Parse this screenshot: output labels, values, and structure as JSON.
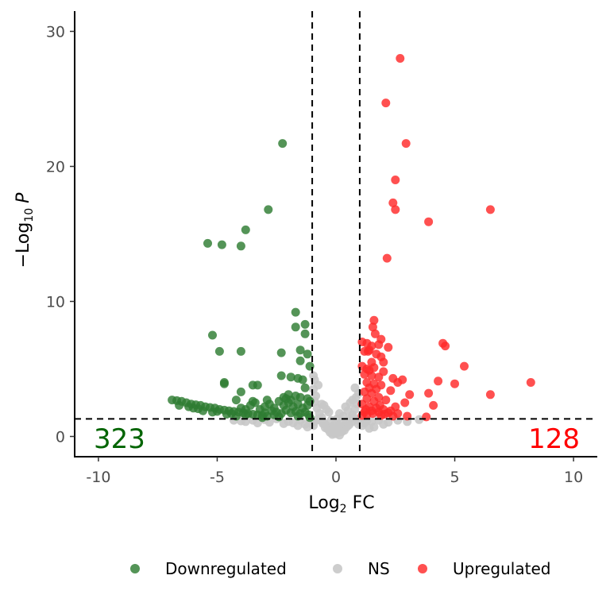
{
  "chart_data": {
    "type": "scatter",
    "title": "",
    "xlabel": {
      "base": "Log",
      "sub": "2",
      "rest": " FC"
    },
    "ylabel": {
      "prefix": "−Log",
      "sub": "10",
      "var": "P"
    },
    "xlim": [
      -11,
      11
    ],
    "ylim": [
      -1.5,
      31.5
    ],
    "x_ticks": [
      -10,
      -5,
      0,
      5,
      10
    ],
    "x_tick_labels": [
      "-10",
      "-5",
      "0",
      "5",
      "10"
    ],
    "y_ticks": [
      0,
      10,
      20,
      30
    ],
    "y_tick_labels": [
      "0",
      "10",
      "20",
      "30"
    ],
    "fc_cutoffs": [
      -1,
      1
    ],
    "p_cutoff": 1.3,
    "grid": false,
    "legend_position": "bottom",
    "counts": {
      "down": {
        "text": "323",
        "color": "#006400"
      },
      "up": {
        "text": "128",
        "color": "#ff0000"
      }
    },
    "series": [
      {
        "name": "Downregulated",
        "color": "#2e7d32",
        "points": [
          [
            -2.25,
            21.7
          ],
          [
            -2.85,
            16.8
          ],
          [
            -3.8,
            15.3
          ],
          [
            -5.4,
            14.3
          ],
          [
            -4.8,
            14.2
          ],
          [
            -4.0,
            14.1
          ],
          [
            -1.7,
            9.2
          ],
          [
            -1.3,
            8.3
          ],
          [
            -1.7,
            8.1
          ],
          [
            -1.3,
            7.6
          ],
          [
            -5.2,
            7.5
          ],
          [
            -4.9,
            6.3
          ],
          [
            -4.0,
            6.3
          ],
          [
            -2.3,
            6.2
          ],
          [
            -1.5,
            6.4
          ],
          [
            -1.2,
            6.1
          ],
          [
            -1.5,
            5.6
          ],
          [
            -1.1,
            5.2
          ],
          [
            -4.7,
            4.0
          ],
          [
            -4.7,
            3.9
          ],
          [
            -2.3,
            4.5
          ],
          [
            -1.9,
            4.4
          ],
          [
            -1.6,
            4.3
          ],
          [
            -1.4,
            4.2
          ],
          [
            -3.5,
            3.8
          ],
          [
            -3.3,
            3.8
          ],
          [
            -1.3,
            3.6
          ],
          [
            -4.0,
            3.3
          ],
          [
            -2.0,
            3.1
          ],
          [
            -1.7,
            3.0
          ],
          [
            -1.5,
            2.9
          ],
          [
            -4.2,
            2.7
          ],
          [
            -3.5,
            2.6
          ],
          [
            -2.2,
            2.9
          ],
          [
            -6.9,
            2.7
          ],
          [
            -6.7,
            2.65
          ],
          [
            -6.5,
            2.6
          ],
          [
            -6.3,
            2.5
          ],
          [
            -6.1,
            2.4
          ],
          [
            -5.9,
            2.35
          ],
          [
            -5.7,
            2.3
          ],
          [
            -5.5,
            2.2
          ],
          [
            -5.3,
            2.15
          ],
          [
            -5.1,
            2.1
          ],
          [
            -4.9,
            2.0
          ],
          [
            -4.7,
            1.95
          ],
          [
            -4.5,
            1.9
          ],
          [
            -4.3,
            1.85
          ],
          [
            -4.1,
            1.8
          ],
          [
            -3.9,
            1.75
          ],
          [
            -3.7,
            1.7
          ],
          [
            -3.5,
            1.65
          ],
          [
            -3.3,
            1.6
          ],
          [
            -3.1,
            1.55
          ],
          [
            -2.9,
            1.5
          ],
          [
            -6.6,
            2.3
          ],
          [
            -6.2,
            2.2
          ],
          [
            -5.8,
            2.05
          ],
          [
            -5.0,
            1.85
          ],
          [
            -4.4,
            1.7
          ],
          [
            -3.8,
            1.6
          ],
          [
            -3.2,
            2.0
          ],
          [
            -3.0,
            2.2
          ],
          [
            -2.8,
            2.4
          ],
          [
            -2.6,
            2.1
          ],
          [
            -2.4,
            2.6
          ],
          [
            -2.2,
            2.3
          ],
          [
            -2.0,
            2.5
          ],
          [
            -1.8,
            2.2
          ],
          [
            -1.6,
            2.4
          ],
          [
            -1.4,
            2.1
          ],
          [
            -1.2,
            2.3
          ],
          [
            -1.1,
            2.6
          ],
          [
            -3.6,
            2.3
          ],
          [
            -3.4,
            2.5
          ],
          [
            -2.7,
            1.9
          ],
          [
            -2.5,
            1.8
          ],
          [
            -2.3,
            1.7
          ],
          [
            -2.1,
            1.95
          ],
          [
            -1.9,
            1.75
          ],
          [
            -1.7,
            1.85
          ],
          [
            -1.5,
            1.7
          ],
          [
            -1.3,
            1.8
          ],
          [
            -1.15,
            1.6
          ],
          [
            -3.0,
            1.75
          ],
          [
            -2.6,
            1.6
          ],
          [
            -4.6,
            1.65
          ],
          [
            -5.2,
            1.8
          ],
          [
            -4.0,
            2.1
          ],
          [
            -3.8,
            2.0
          ],
          [
            -2.9,
            2.7
          ],
          [
            -2.1,
            2.8
          ],
          [
            -1.9,
            2.7
          ],
          [
            -1.2,
            2.8
          ],
          [
            -3.1,
            1.4
          ],
          [
            -2.4,
            1.45
          ],
          [
            -1.6,
            1.5
          ],
          [
            -1.1,
            1.4
          ],
          [
            -4.2,
            1.5
          ],
          [
            -5.6,
            1.9
          ],
          [
            -6.0,
            2.1
          ]
        ]
      },
      {
        "name": "NS",
        "color": "#c8c8c8",
        "points": [
          [
            0.0,
            0.2
          ],
          [
            0.1,
            0.3
          ],
          [
            -0.1,
            0.25
          ],
          [
            0.2,
            0.5
          ],
          [
            -0.2,
            0.4
          ],
          [
            0.3,
            0.6
          ],
          [
            -0.3,
            0.7
          ],
          [
            0.4,
            0.9
          ],
          [
            -0.4,
            0.8
          ],
          [
            0.5,
            1.1
          ],
          [
            -0.5,
            1.0
          ],
          [
            0.6,
            1.3
          ],
          [
            -0.6,
            1.4
          ],
          [
            0.7,
            1.6
          ],
          [
            -0.7,
            1.7
          ],
          [
            0.8,
            2.0
          ],
          [
            -0.8,
            2.1
          ],
          [
            0.9,
            2.4
          ],
          [
            -0.9,
            2.6
          ],
          [
            0.85,
            2.9
          ],
          [
            -0.85,
            3.0
          ],
          [
            0.95,
            3.2
          ],
          [
            -0.95,
            3.5
          ],
          [
            -0.9,
            4.2
          ],
          [
            -0.95,
            4.5
          ],
          [
            0.8,
            3.6
          ],
          [
            0.7,
            2.7
          ],
          [
            -0.75,
            3.8
          ],
          [
            0.15,
            0.1
          ],
          [
            -0.15,
            0.15
          ],
          [
            0.25,
            0.35
          ],
          [
            -0.25,
            0.3
          ],
          [
            0.35,
            0.45
          ],
          [
            -0.35,
            0.55
          ],
          [
            0.45,
            0.7
          ],
          [
            -0.45,
            0.65
          ],
          [
            0.55,
            0.85
          ],
          [
            -0.55,
            0.95
          ],
          [
            0.65,
            1.05
          ],
          [
            -0.65,
            1.2
          ],
          [
            0.75,
            1.4
          ],
          [
            -0.75,
            1.3
          ],
          [
            0.1,
            0.8
          ],
          [
            -0.1,
            0.6
          ],
          [
            0.2,
            1.0
          ],
          [
            -0.2,
            1.2
          ],
          [
            0.3,
            1.5
          ],
          [
            -0.3,
            1.8
          ],
          [
            0.05,
            1.3
          ],
          [
            -0.05,
            0.9
          ],
          [
            0.15,
            1.7
          ],
          [
            -0.4,
            2.0
          ],
          [
            0.4,
            2.2
          ],
          [
            0.6,
            2.5
          ],
          [
            -0.6,
            2.4
          ],
          [
            0.5,
            1.9
          ],
          [
            -0.5,
            2.3
          ],
          [
            0.9,
            1.2
          ],
          [
            -0.9,
            1.1
          ],
          [
            0.95,
            0.9
          ],
          [
            -0.95,
            0.8
          ],
          [
            -1.5,
            1.2
          ],
          [
            -2.0,
            1.1
          ],
          [
            -2.5,
            1.3
          ],
          [
            -3.0,
            1.25
          ],
          [
            -3.5,
            1.2
          ],
          [
            -4.0,
            1.15
          ],
          [
            -1.8,
            1.0
          ],
          [
            -2.8,
            1.05
          ],
          [
            -3.8,
            1.1
          ],
          [
            -1.3,
            0.9
          ],
          [
            -1.1,
            1.0
          ],
          [
            -2.2,
            0.95
          ],
          [
            -3.3,
            1.0
          ],
          [
            -4.3,
            1.2
          ],
          [
            1.2,
            1.0
          ],
          [
            1.5,
            1.1
          ],
          [
            1.8,
            1.2
          ],
          [
            2.2,
            1.05
          ],
          [
            2.6,
            1.2
          ],
          [
            3.0,
            1.1
          ],
          [
            3.5,
            1.25
          ],
          [
            1.1,
            0.8
          ],
          [
            1.3,
            1.2
          ],
          [
            2.0,
            0.9
          ],
          [
            1.6,
            0.7
          ],
          [
            1.4,
            0.6
          ],
          [
            -1.2,
            0.7
          ],
          [
            -1.6,
            0.8
          ]
        ]
      },
      {
        "name": "Upregulated",
        "color": "#ff2a2a",
        "points": [
          [
            2.7,
            28.0
          ],
          [
            2.1,
            24.7
          ],
          [
            2.95,
            21.7
          ],
          [
            2.5,
            19.0
          ],
          [
            2.4,
            17.3
          ],
          [
            2.5,
            16.8
          ],
          [
            6.5,
            16.8
          ],
          [
            3.9,
            15.9
          ],
          [
            2.15,
            13.2
          ],
          [
            1.6,
            8.6
          ],
          [
            1.55,
            8.1
          ],
          [
            1.65,
            7.6
          ],
          [
            1.9,
            7.2
          ],
          [
            1.1,
            7.0
          ],
          [
            1.3,
            6.9
          ],
          [
            1.8,
            6.8
          ],
          [
            2.2,
            6.6
          ],
          [
            1.5,
            6.7
          ],
          [
            4.5,
            6.9
          ],
          [
            4.6,
            6.7
          ],
          [
            1.2,
            6.3
          ],
          [
            1.4,
            6.4
          ],
          [
            1.35,
            6.3
          ],
          [
            1.7,
            6.1
          ],
          [
            1.9,
            5.9
          ],
          [
            1.5,
            5.5
          ],
          [
            2.0,
            5.5
          ],
          [
            1.1,
            5.2
          ],
          [
            1.3,
            5.0
          ],
          [
            1.6,
            5.1
          ],
          [
            5.4,
            5.2
          ],
          [
            1.4,
            4.9
          ],
          [
            2.0,
            4.8
          ],
          [
            1.2,
            4.6
          ],
          [
            1.5,
            4.5
          ],
          [
            1.8,
            4.4
          ],
          [
            2.4,
            4.3
          ],
          [
            2.8,
            4.2
          ],
          [
            2.6,
            4.0
          ],
          [
            1.3,
            4.0
          ],
          [
            1.6,
            3.9
          ],
          [
            1.9,
            3.8
          ],
          [
            4.3,
            4.1
          ],
          [
            5.0,
            3.9
          ],
          [
            8.2,
            4.0
          ],
          [
            1.4,
            3.6
          ],
          [
            1.7,
            3.5
          ],
          [
            2.3,
            3.4
          ],
          [
            1.2,
            3.3
          ],
          [
            1.5,
            3.2
          ],
          [
            3.1,
            3.1
          ],
          [
            3.9,
            3.2
          ],
          [
            6.5,
            3.1
          ],
          [
            1.8,
            2.9
          ],
          [
            1.3,
            2.8
          ],
          [
            2.1,
            2.7
          ],
          [
            2.9,
            2.5
          ],
          [
            4.1,
            2.3
          ],
          [
            1.6,
            2.6
          ],
          [
            1.1,
            2.4
          ],
          [
            1.4,
            2.2
          ],
          [
            1.7,
            2.1
          ],
          [
            2.0,
            2.0
          ],
          [
            2.3,
            1.9
          ],
          [
            1.2,
            1.8
          ],
          [
            1.5,
            1.9
          ],
          [
            1.8,
            1.8
          ],
          [
            2.2,
            1.75
          ],
          [
            2.6,
            1.7
          ],
          [
            1.3,
            1.6
          ],
          [
            1.9,
            1.55
          ],
          [
            2.4,
            1.5
          ],
          [
            3.0,
            1.5
          ],
          [
            3.8,
            1.45
          ],
          [
            1.1,
            1.55
          ],
          [
            2.5,
            2.2
          ],
          [
            2.05,
            1.65
          ],
          [
            1.25,
            2.0
          ],
          [
            1.55,
            1.7
          ],
          [
            1.85,
            2.3
          ]
        ]
      }
    ]
  }
}
